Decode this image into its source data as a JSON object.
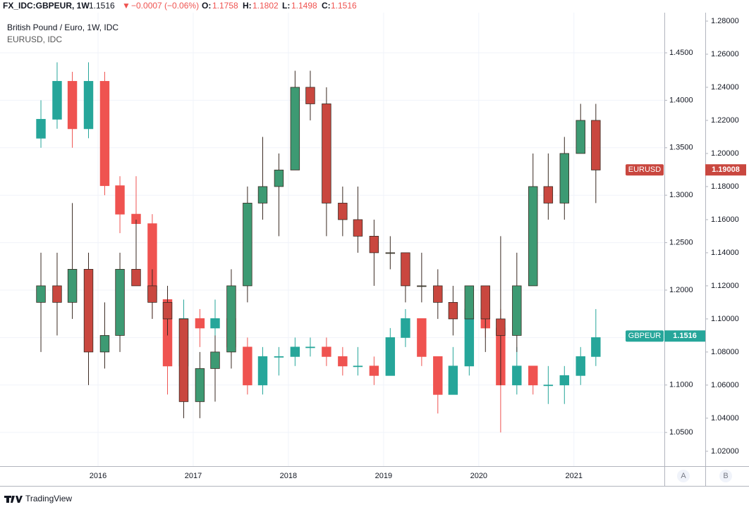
{
  "header": {
    "symbol": "FX_IDC:GBPEUR, 1W",
    "price": "1.1516",
    "arrow": "▼",
    "change": "−0.0007 (−0.06%)",
    "o_label": "O:",
    "open": "1.1758",
    "h_label": "H:",
    "high": "1.1802",
    "l_label": "L:",
    "low": "1.1498",
    "c_label": "C:",
    "close": "1.1516"
  },
  "legend": [
    "British Pound / Euro, 1W, IDC",
    "EURUSD, IDC"
  ],
  "scale_buttons": [
    "A",
    "B"
  ],
  "brand": "TradingView",
  "chart_data": {
    "type": "candlestick",
    "x": [
      2015.4,
      2015.57,
      2015.73,
      2015.9,
      2016.07,
      2016.23,
      2016.4,
      2016.57,
      2016.73,
      2016.9,
      2017.07,
      2017.23,
      2017.4,
      2017.57,
      2017.73,
      2017.9,
      2018.07,
      2018.23,
      2018.4,
      2018.57,
      2018.73,
      2018.9,
      2019.07,
      2019.23,
      2019.4,
      2019.57,
      2019.73,
      2019.9,
      2020.07,
      2020.23,
      2020.4,
      2020.57,
      2020.73,
      2020.9,
      2021.07,
      2021.23
    ],
    "xlim": [
      2014.97,
      2021.95
    ],
    "xticks": [
      2016,
      2017,
      2018,
      2019,
      2020,
      2021
    ],
    "ylim": [
      1.0145,
      1.4923
    ],
    "yticks": [
      {
        "value": 1.05,
        "label": "1.0500"
      },
      {
        "value": 1.1,
        "label": "1.1000"
      },
      {
        "value": 1.15,
        "label": "1.1500"
      },
      {
        "value": 1.2,
        "label": "1.2000"
      },
      {
        "value": 1.25,
        "label": "1.2500"
      },
      {
        "value": 1.3,
        "label": "1.3000"
      },
      {
        "value": 1.35,
        "label": "1.3500"
      },
      {
        "value": 1.4,
        "label": "1.4000"
      },
      {
        "value": 1.45,
        "label": "1.4500"
      }
    ],
    "y2lim": [
      1.011,
      1.2851
    ],
    "y2ticks": [
      {
        "value": 1.02,
        "label": "1.02000"
      },
      {
        "value": 1.04,
        "label": "1.04000"
      },
      {
        "value": 1.06,
        "label": "1.06000"
      },
      {
        "value": 1.08,
        "label": "1.08000"
      },
      {
        "value": 1.1,
        "label": "1.10000"
      },
      {
        "value": 1.12,
        "label": "1.12000"
      },
      {
        "value": 1.14,
        "label": "1.14000"
      },
      {
        "value": 1.16,
        "label": "1.16000"
      },
      {
        "value": 1.18,
        "label": "1.18000"
      },
      {
        "value": 1.2,
        "label": "1.20000"
      },
      {
        "value": 1.22,
        "label": "1.22000"
      },
      {
        "value": 1.24,
        "label": "1.24000"
      },
      {
        "value": 1.26,
        "label": "1.26000"
      },
      {
        "value": 1.28,
        "label": "1.28000"
      }
    ],
    "grid": true,
    "series": [
      {
        "name": "GBPEUR",
        "axis": "y",
        "up_color": "#26a69a",
        "down_color": "#ef5350",
        "last": 1.1516,
        "open": [
          1.36,
          1.38,
          1.42,
          1.37,
          1.42,
          1.31,
          1.28,
          1.27,
          1.19,
          1.12,
          1.17,
          1.16,
          1.17,
          1.14,
          1.1,
          1.13,
          1.13,
          1.14,
          1.14,
          1.13,
          1.12,
          1.12,
          1.11,
          1.15,
          1.17,
          1.13,
          1.09,
          1.12,
          1.18,
          1.16,
          1.1,
          1.12,
          1.1,
          1.1,
          1.11,
          1.13
        ],
        "high": [
          1.4,
          1.44,
          1.43,
          1.44,
          1.43,
          1.32,
          1.32,
          1.28,
          1.2,
          1.19,
          1.18,
          1.19,
          1.18,
          1.15,
          1.14,
          1.14,
          1.15,
          1.15,
          1.15,
          1.14,
          1.14,
          1.13,
          1.16,
          1.18,
          1.17,
          1.13,
          1.14,
          1.2,
          1.19,
          1.18,
          1.14,
          1.12,
          1.12,
          1.12,
          1.14,
          1.18
        ],
        "low": [
          1.35,
          1.37,
          1.35,
          1.36,
          1.3,
          1.26,
          1.26,
          1.17,
          1.09,
          1.11,
          1.14,
          1.15,
          1.13,
          1.09,
          1.09,
          1.11,
          1.12,
          1.13,
          1.12,
          1.11,
          1.11,
          1.1,
          1.11,
          1.14,
          1.12,
          1.07,
          1.09,
          1.11,
          1.15,
          1.05,
          1.09,
          1.09,
          1.08,
          1.08,
          1.1,
          1.12
        ],
        "close": [
          1.38,
          1.42,
          1.37,
          1.42,
          1.31,
          1.28,
          1.27,
          1.19,
          1.12,
          1.17,
          1.16,
          1.17,
          1.14,
          1.1,
          1.13,
          1.13,
          1.14,
          1.14,
          1.13,
          1.12,
          1.12,
          1.11,
          1.15,
          1.17,
          1.13,
          1.09,
          1.12,
          1.18,
          1.16,
          1.1,
          1.12,
          1.1,
          1.1,
          1.11,
          1.13,
          1.15
        ]
      },
      {
        "name": "EURUSD",
        "axis": "y2",
        "up_color": "#3d9a73",
        "down_color": "#c9473f",
        "last": 1.19008,
        "open": [
          1.11,
          1.12,
          1.11,
          1.13,
          1.08,
          1.09,
          1.13,
          1.12,
          1.11,
          1.1,
          1.05,
          1.07,
          1.08,
          1.12,
          1.17,
          1.18,
          1.19,
          1.24,
          1.23,
          1.17,
          1.16,
          1.15,
          1.14,
          1.14,
          1.12,
          1.12,
          1.11,
          1.1,
          1.12,
          1.1,
          1.09,
          1.12,
          1.18,
          1.17,
          1.2,
          1.22
        ],
        "high": [
          1.14,
          1.14,
          1.17,
          1.14,
          1.11,
          1.14,
          1.16,
          1.13,
          1.12,
          1.1,
          1.08,
          1.09,
          1.13,
          1.18,
          1.21,
          1.2,
          1.25,
          1.25,
          1.24,
          1.18,
          1.18,
          1.16,
          1.15,
          1.14,
          1.14,
          1.13,
          1.12,
          1.12,
          1.12,
          1.15,
          1.14,
          1.2,
          1.2,
          1.21,
          1.23,
          1.23
        ],
        "low": [
          1.08,
          1.09,
          1.1,
          1.06,
          1.07,
          1.08,
          1.12,
          1.1,
          1.09,
          1.04,
          1.04,
          1.05,
          1.07,
          1.11,
          1.16,
          1.15,
          1.19,
          1.22,
          1.15,
          1.15,
          1.14,
          1.12,
          1.13,
          1.11,
          1.11,
          1.1,
          1.09,
          1.1,
          1.08,
          1.06,
          1.08,
          1.12,
          1.16,
          1.16,
          1.2,
          1.17
        ],
        "close": [
          1.12,
          1.11,
          1.13,
          1.08,
          1.09,
          1.13,
          1.12,
          1.11,
          1.1,
          1.05,
          1.07,
          1.08,
          1.12,
          1.17,
          1.18,
          1.19,
          1.24,
          1.23,
          1.17,
          1.16,
          1.15,
          1.14,
          1.14,
          1.12,
          1.12,
          1.11,
          1.1,
          1.12,
          1.1,
          1.09,
          1.12,
          1.18,
          1.17,
          1.2,
          1.22,
          1.19
        ]
      }
    ]
  }
}
